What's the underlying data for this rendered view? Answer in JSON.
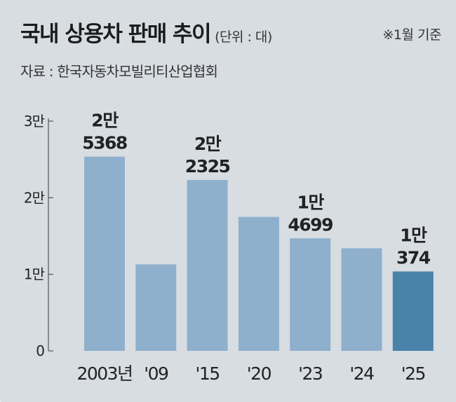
{
  "header": {
    "title": "국내 상용차 판매 추이",
    "unit": "(단위 : 대)",
    "basis": "※1월 기준",
    "source": "자료 : 한국자동차모빌리티산업협회"
  },
  "chart_data": {
    "type": "bar",
    "title": "국내 상용차 판매 추이",
    "ylabel": "",
    "xlabel": "",
    "categories": [
      "2003년",
      "'09",
      "'15",
      "'20",
      "'23",
      "'24",
      "'25"
    ],
    "values": [
      25368,
      11300,
      22325,
      17500,
      14699,
      13400,
      10374
    ],
    "data_labels": [
      [
        "2만",
        "5368"
      ],
      null,
      [
        "2만",
        "2325"
      ],
      null,
      [
        "1만",
        "4699"
      ],
      null,
      [
        "1만",
        "374"
      ]
    ],
    "y_ticks": [
      {
        "value": 0,
        "label": "0"
      },
      {
        "value": 10000,
        "label": "1만"
      },
      {
        "value": 20000,
        "label": "2만"
      },
      {
        "value": 30000,
        "label": "3만"
      }
    ],
    "ylim": [
      0,
      30000
    ],
    "grid": false,
    "legend": "none",
    "colors": {
      "bar": "#8eb0cd",
      "highlight_bar": "#4a83aa",
      "highlight_index": 6,
      "plot_bg": "#d8dde2",
      "axis": "#555555",
      "text": "#222222"
    }
  }
}
